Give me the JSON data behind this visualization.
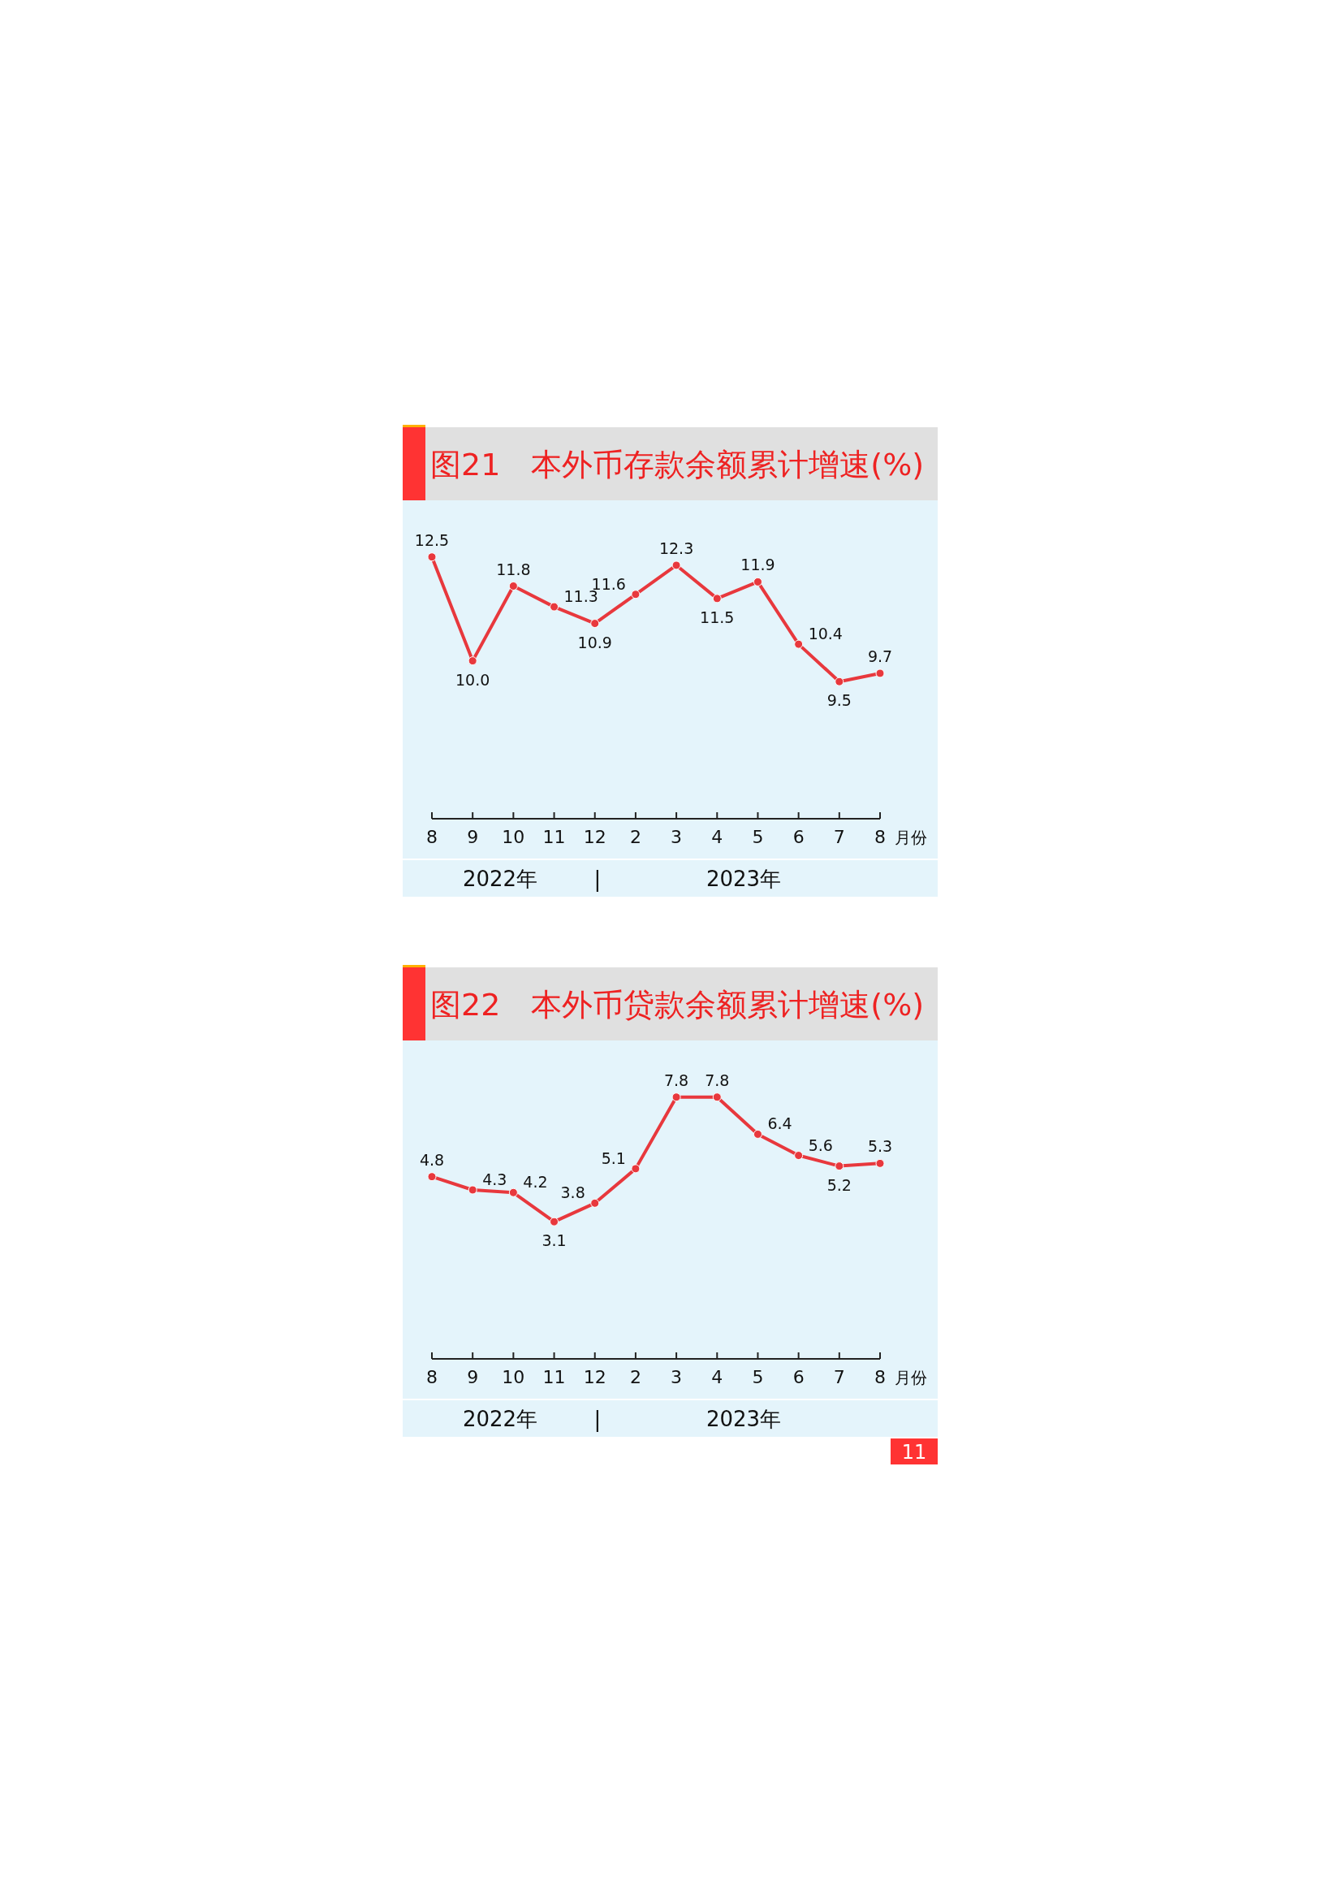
{
  "chart_data": [
    {
      "type": "line",
      "title": "图21　本外币存款余额累计增速(%)",
      "xlabel": "月份",
      "categories": [
        "8",
        "9",
        "10",
        "11",
        "12",
        "2",
        "3",
        "4",
        "5",
        "6",
        "7",
        "8"
      ],
      "series": [
        {
          "color": "#e8383d",
          "values": [
            12.5,
            10.0,
            11.8,
            11.3,
            10.9,
            11.6,
            12.3,
            11.5,
            11.9,
            10.4,
            9.5,
            9.7
          ],
          "value_labels": [
            "12.5",
            "10.0",
            "11.8",
            "11.3",
            "10.9",
            "11.6",
            "12.3",
            "11.5",
            "11.9",
            "10.4",
            "9.5",
            "9.7"
          ]
        }
      ],
      "relative": false,
      "tick_labels": "x",
      "marker": "circle",
      "line_style": "solid",
      "annotations": [
        "2022年",
        "|",
        "2023年"
      ]
    },
    {
      "type": "line",
      "title": "图22　本外币贷款余额累计增速(%)",
      "xlabel": "月份",
      "categories": [
        "8",
        "9",
        "10",
        "11",
        "12",
        "2",
        "3",
        "4",
        "5",
        "6",
        "7",
        "8"
      ],
      "series": [
        {
          "color": "#e8383d",
          "values": [
            4.8,
            4.3,
            4.2,
            3.1,
            3.8,
            5.1,
            7.8,
            7.8,
            6.4,
            5.6,
            5.2,
            5.3
          ],
          "value_labels": [
            "4.8",
            "4.3",
            "4.2",
            "3.1",
            "3.8",
            "5.1",
            "7.8",
            "7.8",
            "6.4",
            "5.6",
            "5.2",
            "5.3"
          ]
        }
      ],
      "relative": false,
      "tick_labels": "x",
      "marker": "circle",
      "line_style": "solid",
      "annotations": [
        "2022年",
        "|",
        "2023年",
        "11"
      ]
    }
  ]
}
